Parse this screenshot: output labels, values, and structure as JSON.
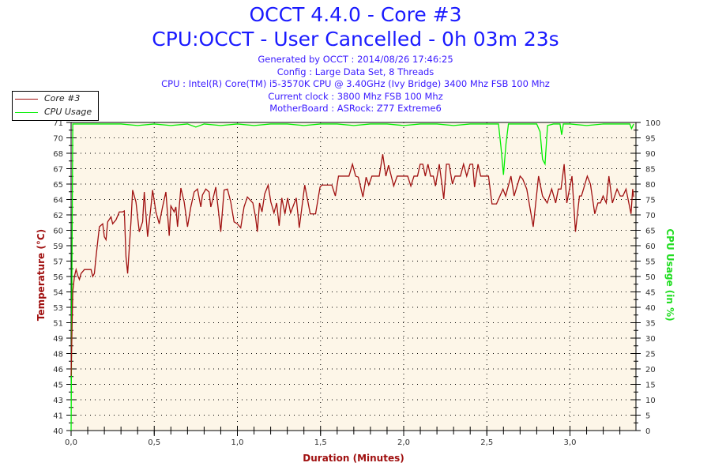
{
  "chart_data": {
    "type": "line",
    "title": "OCCT 4.4.0 - Core #3",
    "subtitle": "CPU:OCCT - User Cancelled - 0h 03m 23s",
    "info_lines": [
      "Generated by OCCT : 2014/08/26 17:46:25",
      "Config : Large Data Set, 8 Threads",
      "CPU : Intel(R) Core(TM) i5-3570K CPU @ 3.40GHz (Ivy Bridge) 3400 Mhz FSB 100 Mhz",
      "Current clock : 3800 Mhz FSB 100 Mhz",
      "MotherBoard : ASRock: Z77 Extreme6"
    ],
    "xlabel": "Duration (Minutes)",
    "ylabel": "Temperature (°C)",
    "y2label": "CPU Usage (in %)",
    "xlim": [
      0,
      3.383
    ],
    "ylim": [
      40,
      71
    ],
    "y2lim": [
      0,
      100
    ],
    "x_ticks": [
      "0,0",
      "0,5",
      "1,0",
      "1,5",
      "2,0",
      "2,5",
      "3,0"
    ],
    "x_tick_values": [
      0,
      0.5,
      1.0,
      1.5,
      2.0,
      2.5,
      3.0
    ],
    "y_ticks": [
      "40",
      "41",
      "43",
      "45",
      "46",
      "48",
      "49",
      "51",
      "53",
      "54",
      "56",
      "57",
      "59",
      "60",
      "62",
      "64",
      "65",
      "67",
      "68",
      "70",
      "71"
    ],
    "y2_ticks": [
      "0",
      "5",
      "10",
      "15",
      "20",
      "25",
      "30",
      "35",
      "40",
      "45",
      "50",
      "55",
      "60",
      "65",
      "70",
      "75",
      "80",
      "85",
      "90",
      "95",
      "100"
    ],
    "grid": true,
    "legend_position": "top-left",
    "colors": {
      "temp": "#a01010",
      "cpu": "#00ee00",
      "title": "#1a1aff",
      "plot_bg": "#fdf6e8"
    },
    "series": [
      {
        "name": "Core #3",
        "axis": "left",
        "x": [
          0,
          0.01,
          0.02,
          0.03,
          0.04,
          0.05,
          0.06,
          0.08,
          0.1,
          0.12,
          0.13,
          0.14,
          0.15,
          0.17,
          0.19,
          0.2,
          0.21,
          0.22,
          0.24,
          0.25,
          0.27,
          0.29,
          0.31,
          0.32,
          0.33,
          0.34,
          0.36,
          0.37,
          0.39,
          0.41,
          0.43,
          0.44,
          0.46,
          0.48,
          0.49,
          0.51,
          0.53,
          0.55,
          0.57,
          0.59,
          0.6,
          0.62,
          0.63,
          0.64,
          0.66,
          0.68,
          0.7,
          0.72,
          0.74,
          0.76,
          0.78,
          0.79,
          0.81,
          0.83,
          0.84,
          0.85,
          0.87,
          0.88,
          0.9,
          0.92,
          0.94,
          0.96,
          0.98,
          1.0,
          1.02,
          1.04,
          1.06,
          1.093,
          1.109,
          1.12,
          1.133,
          1.148,
          1.164,
          1.185,
          1.201,
          1.22,
          1.236,
          1.251,
          1.267,
          1.286,
          1.302,
          1.32,
          1.354,
          1.372,
          1.405,
          1.438,
          1.47,
          1.497,
          1.508,
          1.568,
          1.589,
          1.608,
          1.671,
          1.692,
          1.711,
          1.727,
          1.755,
          1.774,
          1.79,
          1.809,
          1.853,
          1.874,
          1.893,
          1.909,
          1.94,
          1.961,
          2.024,
          2.043,
          2.062,
          2.083,
          2.099,
          2.115,
          2.13,
          2.146,
          2.162,
          2.178,
          2.191,
          2.214,
          2.233,
          2.241,
          2.257,
          2.273,
          2.293,
          2.309,
          2.341,
          2.36,
          2.379,
          2.399,
          2.415,
          2.426,
          2.447,
          2.463,
          2.51,
          2.531,
          2.558,
          2.597,
          2.613,
          2.645,
          2.664,
          2.7,
          2.716,
          2.74,
          2.779,
          2.811,
          2.835,
          2.863,
          2.89,
          2.914,
          2.93,
          2.946,
          2.965,
          2.981,
          3.012,
          3.033,
          3.057,
          3.069,
          3.104,
          3.123,
          3.149,
          3.168,
          3.183,
          3.199,
          3.218,
          3.234,
          3.255,
          3.283,
          3.302,
          3.318,
          3.337,
          3.367,
          3.377,
          3.383
        ],
        "y": [
          45.5,
          54,
          55.5,
          56.2,
          55.6,
          55.2,
          55.8,
          56.2,
          56.2,
          56.2,
          55.5,
          55.8,
          57.5,
          60.5,
          60.8,
          59.5,
          59.2,
          61,
          61.5,
          60.8,
          61.2,
          62,
          62,
          62.1,
          57.5,
          55.8,
          61,
          64.2,
          63,
          60,
          61,
          64,
          59.5,
          62.5,
          64.2,
          62,
          60.8,
          62.5,
          64,
          59.6,
          62.6,
          62,
          62.5,
          60.5,
          64.4,
          63,
          60.5,
          62.5,
          64,
          64.3,
          62.5,
          63.7,
          64.3,
          64,
          62.5,
          63.1,
          64.5,
          63,
          60,
          64.2,
          64.3,
          63,
          61,
          60.8,
          60.4,
          62.5,
          63.5,
          62.9,
          61.5,
          60,
          62.9,
          62,
          63.8,
          64.7,
          63,
          61.9,
          62.9,
          60.6,
          63.4,
          61.8,
          63.4,
          61.9,
          63.4,
          60.4,
          64.7,
          61.8,
          61.8,
          64.5,
          64.7,
          64.7,
          63.6,
          65.6,
          65.6,
          66.8,
          65.6,
          65.5,
          63.5,
          65.5,
          64.7,
          65.6,
          65.6,
          67.8,
          65.6,
          66.7,
          64.6,
          65.6,
          65.6,
          64.6,
          65.6,
          65.6,
          66.8,
          66.8,
          65.6,
          66.8,
          65.6,
          65.6,
          64.6,
          66.8,
          64.4,
          63.3,
          66.8,
          66.8,
          64.8,
          65.6,
          65.6,
          66.8,
          65.6,
          66.8,
          66.8,
          64.5,
          66.8,
          65.6,
          65.6,
          62.8,
          62.8,
          64.3,
          63.6,
          65.6,
          63.6,
          65.6,
          65.3,
          64.3,
          60.5,
          65.6,
          63.6,
          62.9,
          64.3,
          62.9,
          64.3,
          64.3,
          66.8,
          62.9,
          65.6,
          60,
          63.6,
          63.6,
          65.6,
          64.8,
          61.8,
          62.9,
          62.9,
          63.6,
          62.9,
          65.6,
          62.9,
          64.3,
          63.6,
          63.6,
          64.3,
          61.8,
          64.3,
          63.5
        ]
      },
      {
        "name": "CPU Usage",
        "axis": "right",
        "x": [
          0,
          0.01,
          0.1,
          0.2,
          0.3,
          0.4,
          0.5,
          0.6,
          0.7,
          0.75,
          0.8,
          0.9,
          1.0,
          1.1,
          1.2,
          1.3,
          1.4,
          1.5,
          1.6,
          1.7,
          1.8,
          1.9,
          2.0,
          2.1,
          2.2,
          2.3,
          2.4,
          2.5,
          2.57,
          2.585,
          2.6,
          2.615,
          2.63,
          2.7,
          2.8,
          2.82,
          2.835,
          2.85,
          2.865,
          2.9,
          2.94,
          2.95,
          2.96,
          3.0,
          3.1,
          3.2,
          3.3,
          3.36,
          3.37,
          3.383
        ],
        "y": [
          0,
          99.5,
          99.5,
          99.5,
          99.5,
          99,
          99.5,
          99,
          99.5,
          98.5,
          99.5,
          99,
          99.5,
          99,
          99.5,
          99.5,
          99,
          99.5,
          99.5,
          99,
          99.5,
          99.5,
          99,
          99.5,
          99.5,
          99,
          99.5,
          99.5,
          99.5,
          92,
          83,
          93,
          99.5,
          99.5,
          99.5,
          97,
          88,
          86.5,
          99,
          99.5,
          99.5,
          96,
          99.5,
          99.5,
          99,
          99.5,
          99.5,
          99.5,
          98,
          99.5
        ]
      }
    ]
  }
}
